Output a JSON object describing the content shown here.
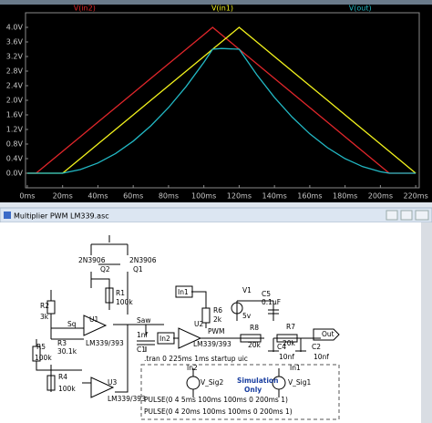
{
  "chart_data": {
    "type": "line",
    "x": [
      0,
      5,
      10,
      20,
      30,
      40,
      50,
      60,
      70,
      80,
      90,
      100,
      105,
      110,
      120,
      130,
      140,
      150,
      160,
      170,
      180,
      190,
      200,
      205,
      210,
      220
    ],
    "series": [
      {
        "name": "V(in2)",
        "color": "#e0262a",
        "values": [
          0,
          0,
          0.2,
          0.6,
          1.0,
          1.4,
          1.8,
          2.2,
          2.6,
          3.0,
          3.4,
          3.8,
          4.0,
          3.8,
          3.4,
          3.0,
          2.6,
          2.2,
          1.8,
          1.4,
          1.0,
          0.6,
          0.2,
          0,
          0,
          0
        ]
      },
      {
        "name": "V(in1)",
        "color": "#f2f21c",
        "values": [
          0,
          0,
          0,
          0,
          0.4,
          0.8,
          1.2,
          1.6,
          2.0,
          2.4,
          2.8,
          3.2,
          3.4,
          3.6,
          4.0,
          3.6,
          3.2,
          2.8,
          2.4,
          2.0,
          1.6,
          1.2,
          0.8,
          0.6,
          0.4,
          0
        ]
      },
      {
        "name": "V(out)",
        "color": "#22b8c4",
        "values": [
          0,
          0,
          0,
          0,
          0.1,
          0.28,
          0.54,
          0.88,
          1.3,
          1.8,
          2.38,
          3.04,
          3.4,
          3.42,
          3.4,
          2.7,
          2.08,
          1.54,
          1.08,
          0.7,
          0.4,
          0.18,
          0.04,
          0,
          0,
          0
        ]
      }
    ],
    "xlim": [
      -1,
      222
    ],
    "xticks": [
      {
        "value": 0,
        "label": "0ms"
      },
      {
        "value": 20,
        "label": "20ms"
      },
      {
        "value": 40,
        "label": "40ms"
      },
      {
        "value": 60,
        "label": "60ms"
      },
      {
        "value": 80,
        "label": "80ms"
      },
      {
        "value": 100,
        "label": "100ms"
      },
      {
        "value": 120,
        "label": "120ms"
      },
      {
        "value": 140,
        "label": "140ms"
      },
      {
        "value": 160,
        "label": "160ms"
      },
      {
        "value": 180,
        "label": "180ms"
      },
      {
        "value": 200,
        "label": "200ms"
      },
      {
        "value": 220,
        "label": "220ms"
      }
    ],
    "ylim": [
      -0.4,
      4.4
    ],
    "yticks": [
      {
        "value": 0,
        "label": "0.0V"
      },
      {
        "value": 0.4,
        "label": "0.4V"
      },
      {
        "value": 0.8,
        "label": "0.8V"
      },
      {
        "value": 1.2,
        "label": "1.2V"
      },
      {
        "value": 1.6,
        "label": "1.6V"
      },
      {
        "value": 2.0,
        "label": "2.0V"
      },
      {
        "value": 2.4,
        "label": "2.4V"
      },
      {
        "value": 2.8,
        "label": "2.8V"
      },
      {
        "value": 3.2,
        "label": "3.2V"
      },
      {
        "value": 3.6,
        "label": "3.6V"
      },
      {
        "value": 4.0,
        "label": "4.0V"
      }
    ],
    "grid": false
  },
  "schematic": {
    "window_title": "Multiplier PWM LM339.asc",
    "labels": [
      "2N3906",
      "Q2",
      "2N3906",
      "Q1",
      "R1",
      "100k",
      "R2",
      "3k",
      "Sq",
      "U1",
      "Saw",
      "R3",
      "30.1k",
      "R5",
      "100k",
      "R4",
      "100k",
      "LM339/393",
      "U3",
      "LM339/393",
      "C1",
      "1nf",
      "In1",
      "In2",
      "U2",
      "LM339/393",
      "PWM",
      "R6",
      "2k",
      "V1",
      "5v",
      "C5",
      "0.1µF",
      "R8",
      "20k",
      "R7",
      "20k",
      "Out",
      "C4",
      "10nf",
      "C2",
      "10nf",
      ".tran 0 225ms 1ms startup uic",
      "In2",
      "V_Sig2",
      "In1",
      "V_Sig1",
      "Simulation",
      "Only",
      "PULSE(0 4 5ms 100ms 100ms 0 200ms 1)",
      "PULSE(0 4 20ms 100ms 100ms 0 200ms 1)"
    ]
  }
}
